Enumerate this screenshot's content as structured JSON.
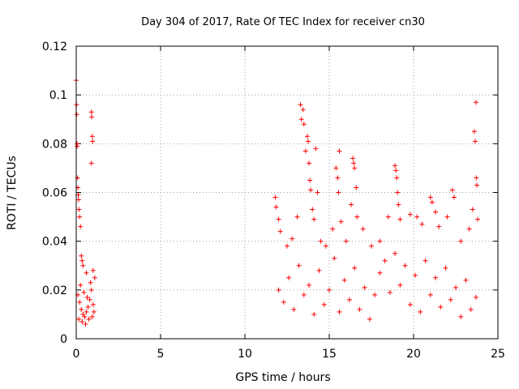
{
  "chart_data": {
    "type": "scatter",
    "title": "Day 304 of 2017, Rate Of TEC Index for receiver cn30",
    "xlabel": "GPS time / hours",
    "ylabel": "ROTI / TECUs",
    "xlim": [
      0,
      25
    ],
    "ylim": [
      0,
      0.12
    ],
    "x_ticks": [
      0,
      5,
      10,
      15,
      20,
      25
    ],
    "x_tick_labels": [
      "0",
      "5",
      "10",
      "15",
      "20",
      "25"
    ],
    "y_ticks": [
      0,
      0.02,
      0.04,
      0.06,
      0.08,
      0.1,
      0.12
    ],
    "y_tick_labels": [
      "0",
      "0.02",
      "0.04",
      "0.06",
      "0.08",
      "0.1",
      "0.12"
    ],
    "grid": true,
    "marker": "+",
    "series": [
      {
        "name": "ROTI",
        "color": "#ff0000",
        "points": [
          [
            0.0,
            0.106
          ],
          [
            0.02,
            0.096
          ],
          [
            0.03,
            0.092
          ],
          [
            0.05,
            0.08
          ],
          [
            0.06,
            0.079
          ],
          [
            0.08,
            0.066
          ],
          [
            0.1,
            0.062
          ],
          [
            0.12,
            0.059
          ],
          [
            0.14,
            0.057
          ],
          [
            0.16,
            0.053
          ],
          [
            0.2,
            0.05
          ],
          [
            0.25,
            0.046
          ],
          [
            0.3,
            0.034
          ],
          [
            0.35,
            0.032
          ],
          [
            0.4,
            0.03
          ],
          [
            0.6,
            0.027
          ],
          [
            0.9,
            0.093
          ],
          [
            0.92,
            0.091
          ],
          [
            0.95,
            0.083
          ],
          [
            0.97,
            0.081
          ],
          [
            0.9,
            0.072
          ],
          [
            1.0,
            0.028
          ],
          [
            1.1,
            0.025
          ],
          [
            0.1,
            0.018
          ],
          [
            0.2,
            0.015
          ],
          [
            0.3,
            0.012
          ],
          [
            0.4,
            0.01
          ],
          [
            0.5,
            0.009
          ],
          [
            0.6,
            0.011
          ],
          [
            0.7,
            0.013
          ],
          [
            0.8,
            0.016
          ],
          [
            0.9,
            0.02
          ],
          [
            1.0,
            0.014
          ],
          [
            0.15,
            0.008
          ],
          [
            0.35,
            0.007
          ],
          [
            0.55,
            0.006
          ],
          [
            0.75,
            0.008
          ],
          [
            0.95,
            0.009
          ],
          [
            1.05,
            0.011
          ],
          [
            0.25,
            0.022
          ],
          [
            0.45,
            0.019
          ],
          [
            0.65,
            0.017
          ],
          [
            0.85,
            0.023
          ],
          [
            11.8,
            0.058
          ],
          [
            11.85,
            0.054
          ],
          [
            12.0,
            0.049
          ],
          [
            12.1,
            0.044
          ],
          [
            12.5,
            0.038
          ],
          [
            12.8,
            0.041
          ],
          [
            13.1,
            0.05
          ],
          [
            13.3,
            0.096
          ],
          [
            13.35,
            0.09
          ],
          [
            13.45,
            0.094
          ],
          [
            13.5,
            0.088
          ],
          [
            13.6,
            0.077
          ],
          [
            13.7,
            0.083
          ],
          [
            13.75,
            0.081
          ],
          [
            13.8,
            0.072
          ],
          [
            13.85,
            0.065
          ],
          [
            13.9,
            0.061
          ],
          [
            14.0,
            0.053
          ],
          [
            14.1,
            0.049
          ],
          [
            14.2,
            0.078
          ],
          [
            14.3,
            0.06
          ],
          [
            14.5,
            0.04
          ],
          [
            14.8,
            0.038
          ],
          [
            15.2,
            0.045
          ],
          [
            15.4,
            0.07
          ],
          [
            15.5,
            0.066
          ],
          [
            15.55,
            0.06
          ],
          [
            15.6,
            0.077
          ],
          [
            15.7,
            0.048
          ],
          [
            16.0,
            0.04
          ],
          [
            16.3,
            0.055
          ],
          [
            16.4,
            0.074
          ],
          [
            16.45,
            0.072
          ],
          [
            16.5,
            0.07
          ],
          [
            16.6,
            0.062
          ],
          [
            16.65,
            0.05
          ],
          [
            17.0,
            0.045
          ],
          [
            17.5,
            0.038
          ],
          [
            18.0,
            0.04
          ],
          [
            18.5,
            0.05
          ],
          [
            18.9,
            0.071
          ],
          [
            18.95,
            0.069
          ],
          [
            19.0,
            0.066
          ],
          [
            19.05,
            0.06
          ],
          [
            19.1,
            0.055
          ],
          [
            19.2,
            0.049
          ],
          [
            19.8,
            0.051
          ],
          [
            20.2,
            0.05
          ],
          [
            20.5,
            0.047
          ],
          [
            21.0,
            0.058
          ],
          [
            21.1,
            0.056
          ],
          [
            21.3,
            0.052
          ],
          [
            21.5,
            0.046
          ],
          [
            22.0,
            0.05
          ],
          [
            22.3,
            0.061
          ],
          [
            22.4,
            0.058
          ],
          [
            22.8,
            0.04
          ],
          [
            23.3,
            0.045
          ],
          [
            23.5,
            0.053
          ],
          [
            23.6,
            0.085
          ],
          [
            23.65,
            0.081
          ],
          [
            23.7,
            0.097
          ],
          [
            23.72,
            0.066
          ],
          [
            23.75,
            0.063
          ],
          [
            23.8,
            0.049
          ],
          [
            12.0,
            0.02
          ],
          [
            12.3,
            0.015
          ],
          [
            12.6,
            0.025
          ],
          [
            12.9,
            0.012
          ],
          [
            13.2,
            0.03
          ],
          [
            13.5,
            0.018
          ],
          [
            13.8,
            0.022
          ],
          [
            14.1,
            0.01
          ],
          [
            14.4,
            0.028
          ],
          [
            14.7,
            0.014
          ],
          [
            15.0,
            0.02
          ],
          [
            15.3,
            0.033
          ],
          [
            15.6,
            0.011
          ],
          [
            15.9,
            0.024
          ],
          [
            16.2,
            0.016
          ],
          [
            16.5,
            0.029
          ],
          [
            16.8,
            0.012
          ],
          [
            17.1,
            0.021
          ],
          [
            17.4,
            0.008
          ],
          [
            17.7,
            0.018
          ],
          [
            18.0,
            0.027
          ],
          [
            18.3,
            0.032
          ],
          [
            18.6,
            0.019
          ],
          [
            18.9,
            0.035
          ],
          [
            19.2,
            0.022
          ],
          [
            19.5,
            0.03
          ],
          [
            19.8,
            0.014
          ],
          [
            20.1,
            0.026
          ],
          [
            20.4,
            0.011
          ],
          [
            20.7,
            0.032
          ],
          [
            21.0,
            0.018
          ],
          [
            21.3,
            0.025
          ],
          [
            21.6,
            0.013
          ],
          [
            21.9,
            0.029
          ],
          [
            22.2,
            0.016
          ],
          [
            22.5,
            0.021
          ],
          [
            22.8,
            0.009
          ],
          [
            23.1,
            0.024
          ],
          [
            23.4,
            0.012
          ],
          [
            23.7,
            0.017
          ]
        ]
      }
    ]
  }
}
